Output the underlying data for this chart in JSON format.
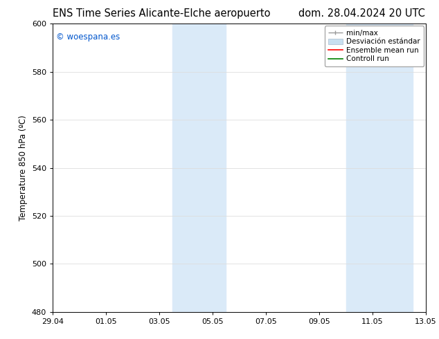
{
  "title_left": "ENS Time Series Alicante-Elche aeropuerto",
  "title_right": "dom. 28.04.2024 20 UTC",
  "ylabel": "Temperature 850 hPa (ºC)",
  "ylim": [
    480,
    600
  ],
  "yticks": [
    480,
    500,
    520,
    540,
    560,
    580,
    600
  ],
  "xtick_labels": [
    "29.04",
    "01.05",
    "03.05",
    "05.05",
    "07.05",
    "09.05",
    "11.05",
    "13.05"
  ],
  "xtick_positions": [
    0,
    2,
    4,
    6,
    8,
    10,
    12,
    14
  ],
  "xlim": [
    0,
    14
  ],
  "shaded_bands": [
    {
      "x_start": 4.5,
      "x_end": 6.5,
      "color": "#daeaf8"
    },
    {
      "x_start": 11.0,
      "x_end": 13.5,
      "color": "#daeaf8"
    }
  ],
  "watermark_text": "© woespana.es",
  "watermark_color": "#0055cc",
  "bg_color": "#ffffff",
  "plot_bg_color": "#ffffff",
  "title_fontsize": 10.5,
  "axis_label_fontsize": 8.5,
  "tick_fontsize": 8,
  "legend_fontsize": 7.5,
  "legend_min_max_color": "#999999",
  "legend_std_color": "#c8dff0",
  "legend_mean_color": "red",
  "legend_control_color": "green"
}
